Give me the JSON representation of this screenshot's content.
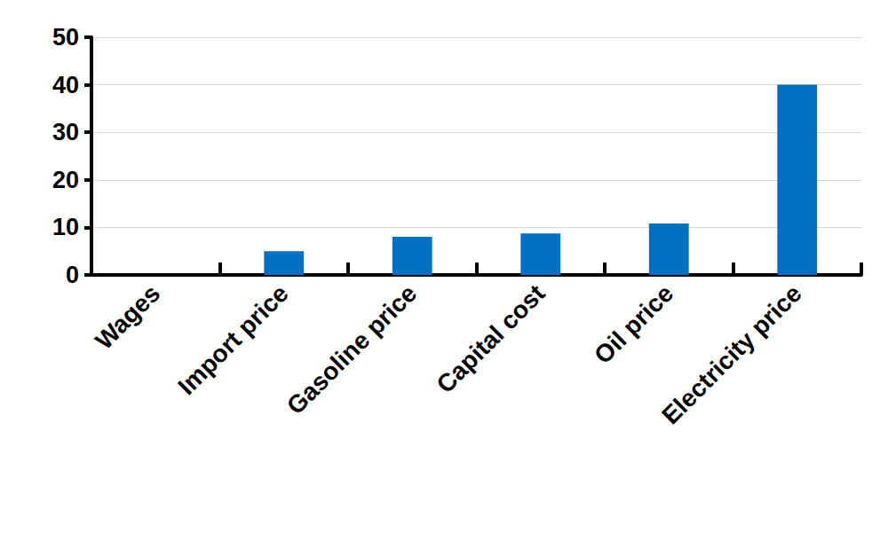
{
  "chart_data": {
    "type": "bar",
    "categories": [
      "Wages",
      "Import price",
      "Gasoline price",
      "Capital cost",
      "Oil price",
      "Electricity price"
    ],
    "values": [
      0,
      5,
      8,
      8.7,
      10.8,
      40
    ],
    "color": "#0070c0",
    "ylim": [
      0,
      50
    ],
    "yticks": [
      0,
      10,
      20,
      30,
      40,
      50
    ],
    "grid": true
  }
}
